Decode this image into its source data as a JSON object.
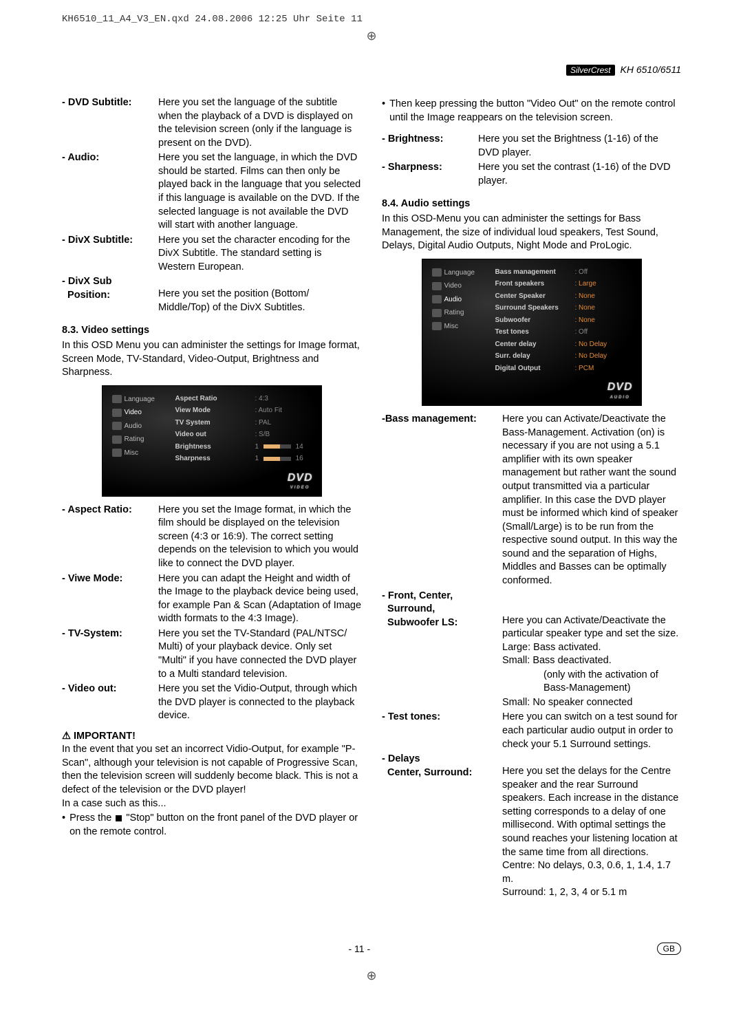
{
  "header_line": "KH6510_11_A4_V3_EN.qxd  24.08.2006  12:25 Uhr  Seite 11",
  "brand_badge": "SilverCrest",
  "model": "KH 6510/6511",
  "left": {
    "dvd_subtitle_label": "- DVD Subtitle:",
    "dvd_subtitle_desc": "Here you set the language of the subtitle when the playback of a DVD is displayed on the television screen (only if the language is present on the DVD).",
    "audio_label": "- Audio:",
    "audio_desc": "Here you set the language, in which the DVD should be started. Films can then only be played back in the language that you selected if this language is available on the DVD. If the selected language is not available the DVD will start with another language.",
    "divx_subtitle_label": "- DivX Subtitle:",
    "divx_subtitle_desc": "Here you set the character encoding for the DivX Subtitle. The standard setting is Western European.",
    "divx_sub_label": "- DivX Sub",
    "position_label": "  Position:",
    "position_desc": "Here you set the  position (Bottom/ Middle/Top) of the DivX Subtitles.",
    "video_title": "8.3. Video settings",
    "video_intro": "In this OSD Menu you can administer the settings for Image format, Screen Mode, TV-Standard, Video-Output, Brightness and Sharpness.",
    "aspect_label": "- Aspect Ratio:",
    "aspect_desc": "Here you set the Image format, in which the film should be displayed on the television screen (4:3 or 16:9). The correct setting depends on the television to which you would like to connect the DVD player.",
    "view_label": "- Viwe Mode:",
    "view_desc": "Here you can adapt the Height and width of the Image to the playback device being used, for example Pan & Scan (Adaptation of Image width formats to the 4:3 Image).",
    "tv_label": "- TV-System:",
    "tv_desc": "Here you set the TV-Standard (PAL/NTSC/ Multi) of your playback device. Only set \"Multi\" if you have connected the DVD player to a Multi standard television.",
    "videoout_label": "- Video out:",
    "videoout_desc": "Here you set the Vidio-Output, through which the DVD player is connected to the playback device.",
    "important": "IMPORTANT!",
    "important_p1": "In the event that you set an incorrect Vidio-Output, for example \"P-Scan\", although your television is not capable of Progressive Scan, then the television screen will suddenly become black. This is not a defect of the television or the DVD player!",
    "important_p2": "In a case such as this...",
    "bullet1": "Press the ",
    "bullet1b": " \"Stop\" button on the front panel of the DVD player or on the remote control."
  },
  "right": {
    "bullet2": "Then keep pressing the button \"Video Out\" on the remote control until the Image reappears on the television screen.",
    "brightness_label": "- Brightness:",
    "brightness_desc": "Here you set the Brightness (1-16) of the DVD player.",
    "sharpness_label": "- Sharpness:",
    "sharpness_desc": "Here you set the contrast (1-16) of the DVD player.",
    "audio_title": "8.4. Audio settings",
    "audio_intro": "In this OSD-Menu you can administer the settings for Bass Management, the size of individual loud speakers, Test Sound, Delays, Digital Audio Outputs, Night Mode and ProLogic.",
    "bass_label": "-Bass management:",
    "bass_desc": "Here you can Activate/Deactivate the Bass-Management. Activation (on) is necessary if you are not using a 5.1 amplifier with its own speaker management but rather want the sound output transmitted via a particular amplifier. In this case the DVD player must be informed which kind of speaker (Small/Large) is to be run from the respective sound output. In this way the sound and the separation of Highs, Middles and Basses can be optimally conformed.",
    "fcs_label1": "- Front, Center,",
    "fcs_label2": "  Surround,",
    "fcs_label3": "  Subwoofer LS:",
    "fcs_desc": "Here you can Activate/Deactivate the particular speaker type and set the size.",
    "fcs_large": "Large: Bass activated.",
    "fcs_small1": "Small:  Bass deactivated.",
    "fcs_small1b": "(only with the activation of Bass-Management)",
    "fcs_small2": "Small:  No speaker connected",
    "test_label": "- Test tones:",
    "test_desc": "Here you can switch on a test sound for each particular audio output in order to check your 5.1 Surround settings.",
    "delays_label": "- Delays",
    "delays_sub": "  Center, Surround:",
    "delays_desc": "Here you set the delays for the Centre speaker and the rear Surround speakers. Each increase in the distance setting corresponds to a delay of one millisecond. With optimal settings the sound reaches your listening location at the same time from all directions.",
    "delays_centre": "Centre: No delays, 0.3, 0.6, 1, 1.4, 1.7 m.",
    "delays_surr": "Surround: 1, 2, 3, 4 or 5.1 m"
  },
  "osd_video": {
    "menu": [
      "Language",
      "Video",
      "Audio",
      "Rating",
      "Misc"
    ],
    "rows": [
      {
        "label": "Aspect Ratio",
        "val": "4:3",
        "hi": false
      },
      {
        "label": "View Mode",
        "val": "Auto Fit",
        "hi": false
      },
      {
        "label": "TV System",
        "val": "PAL",
        "hi": false
      },
      {
        "label": "Video out",
        "val": "S/B",
        "hi": false
      },
      {
        "label": "Brightness",
        "val": "14",
        "slider": true
      },
      {
        "label": "Sharpness",
        "val": "16",
        "slider": true
      }
    ],
    "footer_word": "VIDEO"
  },
  "osd_audio": {
    "menu": [
      "Language",
      "Video",
      "Audio",
      "Rating",
      "Misc"
    ],
    "rows": [
      {
        "label": "Bass management",
        "val": "Off",
        "hi": false
      },
      {
        "label": "Front speakers",
        "val": "Large",
        "hi": true
      },
      {
        "label": "Center Speaker",
        "val": "None",
        "hi": true
      },
      {
        "label": "Surround Speakers",
        "val": "None",
        "hi": true
      },
      {
        "label": "Subwoofer",
        "val": "None",
        "hi": true
      },
      {
        "label": "Test tones",
        "val": "Off",
        "hi": false
      },
      {
        "label": "Center delay",
        "val": "No Delay",
        "hi": true
      },
      {
        "label": "Surr. delay",
        "val": "No Delay",
        "hi": true
      },
      {
        "label": "Digital Output",
        "val": "PCM",
        "hi": true
      }
    ],
    "footer_word": "AUDIO"
  },
  "page_number": "- 11 -",
  "gb": "GB"
}
